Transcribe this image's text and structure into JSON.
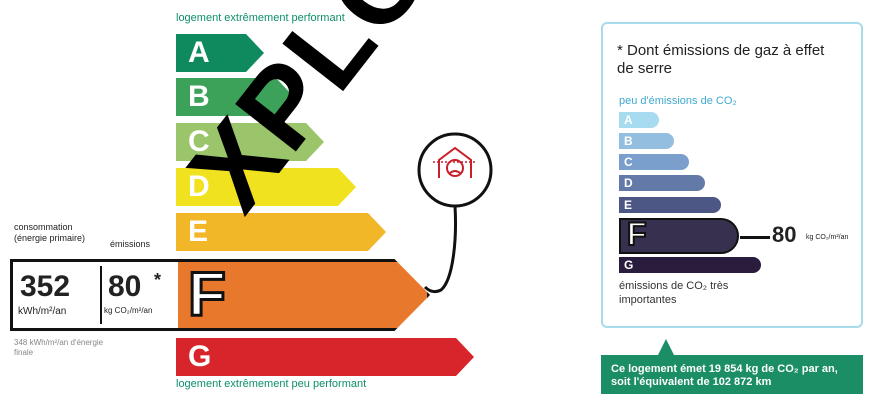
{
  "header": {
    "top_label": "logement extrêmement performant",
    "bottom_label": "logement extrêmement peu performant"
  },
  "energy_classes": [
    {
      "letter": "A",
      "color": "#0f8a5f"
    },
    {
      "letter": "B",
      "color": "#3ca25a"
    },
    {
      "letter": "C",
      "color": "#9bc56a"
    },
    {
      "letter": "D",
      "color": "#f1e21f"
    },
    {
      "letter": "E",
      "color": "#f1b728"
    },
    {
      "letter": "F",
      "color": "#e8782b"
    },
    {
      "letter": "G",
      "color": "#d8242b"
    }
  ],
  "current_class": "F",
  "summary": {
    "consumption_label": "consommation (énergie primaire)",
    "emissions_label": "émissions",
    "consumption_value": "352",
    "consumption_unit": "kWh/m²/an",
    "emissions_value": "80",
    "emissions_star": "*",
    "emissions_unit": "kg CO₂/m²/an",
    "final_energy": "348 kWh/m²/an d'énergie finale"
  },
  "ges": {
    "note": "* Dont émissions de gaz à effet de serre",
    "top_label": "peu d'émissions de CO₂",
    "bottom_label": "émissions de CO₂ très importantes",
    "classes": [
      {
        "letter": "A",
        "color": "#a6dbf0"
      },
      {
        "letter": "B",
        "color": "#94bedf"
      },
      {
        "letter": "C",
        "color": "#7b9fcc"
      },
      {
        "letter": "D",
        "color": "#637aa8"
      },
      {
        "letter": "E",
        "color": "#4c5785"
      },
      {
        "letter": "F",
        "color": "#38304f"
      },
      {
        "letter": "G",
        "color": "#2a1c3d"
      }
    ],
    "value": "80",
    "value_unit": "kg CO₂/m²/an"
  },
  "footer": {
    "text": "Ce logement émet 19 854 kg de CO₂ par an, soit l'équivalent de 102 872 km"
  },
  "watermark": "XPLOITAB"
}
